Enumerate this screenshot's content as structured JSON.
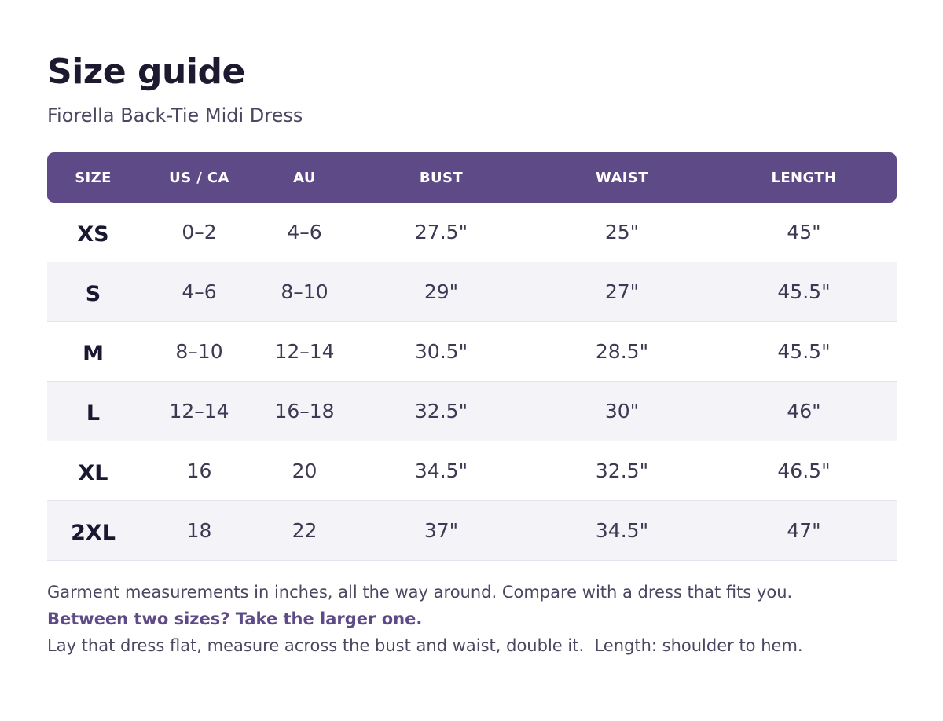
{
  "page": {
    "title": "Size guide",
    "subtitle": "Fiorella Back-Tie Midi Dress"
  },
  "table": {
    "headers": [
      "SIZE",
      "US / CA",
      "AU",
      "BUST",
      "WAIST",
      "LENGTH"
    ],
    "rows": [
      [
        "XS",
        "0–2",
        "4–6",
        "27.5\"",
        "25\"",
        "45\""
      ],
      [
        "S",
        "4–6",
        "8–10",
        "29\"",
        "27\"",
        "45.5\""
      ],
      [
        "M",
        "8–10",
        "12–14",
        "30.5\"",
        "28.5\"",
        "45.5\""
      ],
      [
        "L",
        "12–14",
        "16–18",
        "32.5\"",
        "30\"",
        "46\""
      ],
      [
        "XL",
        "16",
        "20",
        "34.5\"",
        "32.5\"",
        "46.5\""
      ],
      [
        "2XL",
        "18",
        "22",
        "37\"",
        "34.5\"",
        "47\""
      ]
    ]
  },
  "notes": {
    "line1": "Garment measurements in inches, all the way around. Compare with a dress that fits you.",
    "line2": "Between two sizes? Take the larger one.",
    "line3": "Lay that dress flat, measure across the bust and waist, double it.  Length: shoulder to hem."
  },
  "colors": {
    "header_bg": "#5e4a87",
    "accent_text": "#5e4a87",
    "alt_row_bg": "#f4f3f8"
  }
}
